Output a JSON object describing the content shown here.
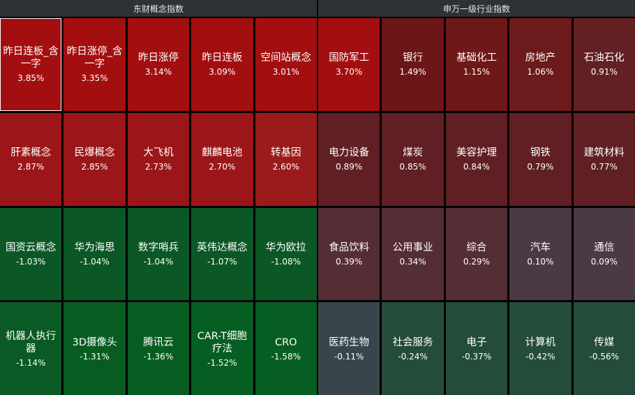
{
  "panels": [
    {
      "title": "东财概念指数",
      "items": [
        {
          "name": "昨日连板_含一字",
          "pct": "3.85%",
          "color": "#a30f10"
        },
        {
          "name": "昨日涨停_含一字",
          "pct": "3.35%",
          "color": "#a30f10"
        },
        {
          "name": "昨日涨停",
          "pct": "3.14%",
          "color": "#a30f10"
        },
        {
          "name": "昨日连板",
          "pct": "3.09%",
          "color": "#a30f10"
        },
        {
          "name": "空间站概念",
          "pct": "3.01%",
          "color": "#a30f10"
        },
        {
          "name": "肝素概念",
          "pct": "2.87%",
          "color": "#9b1618"
        },
        {
          "name": "民爆概念",
          "pct": "2.85%",
          "color": "#9b1618"
        },
        {
          "name": "大飞机",
          "pct": "2.73%",
          "color": "#9b1618"
        },
        {
          "name": "麒麟电池",
          "pct": "2.70%",
          "color": "#9b1618"
        },
        {
          "name": "转基因",
          "pct": "2.60%",
          "color": "#9b1a1a"
        },
        {
          "name": "国资云概念",
          "pct": "-1.03%",
          "color": "#0b5826"
        },
        {
          "name": "华为海思",
          "pct": "-1.04%",
          "color": "#0b5826"
        },
        {
          "name": "数字哨兵",
          "pct": "-1.04%",
          "color": "#0b5826"
        },
        {
          "name": "英伟达概念",
          "pct": "-1.07%",
          "color": "#0b5826"
        },
        {
          "name": "华为欧拉",
          "pct": "-1.08%",
          "color": "#0b5826"
        },
        {
          "name": "机器人执行器",
          "pct": "-1.14%",
          "color": "#095a24"
        },
        {
          "name": "3D摄像头",
          "pct": "-1.31%",
          "color": "#085c22"
        },
        {
          "name": "腾讯云",
          "pct": "-1.36%",
          "color": "#085c22"
        },
        {
          "name": "CAR-T细胞疗法",
          "pct": "-1.52%",
          "color": "#065e22"
        },
        {
          "name": "CRO",
          "pct": "-1.58%",
          "color": "#065e22"
        }
      ]
    },
    {
      "title": "申万一级行业指数",
      "items": [
        {
          "name": "国防军工",
          "pct": "3.70%",
          "color": "#a30f10"
        },
        {
          "name": "银行",
          "pct": "1.49%",
          "color": "#6c1617"
        },
        {
          "name": "基础化工",
          "pct": "1.15%",
          "color": "#6e1818"
        },
        {
          "name": "房地产",
          "pct": "1.06%",
          "color": "#6c1a1b"
        },
        {
          "name": "石油石化",
          "pct": "0.91%",
          "color": "#631f21"
        },
        {
          "name": "电力设备",
          "pct": "0.89%",
          "color": "#601f22"
        },
        {
          "name": "煤炭",
          "pct": "0.85%",
          "color": "#601f22"
        },
        {
          "name": "美容护理",
          "pct": "0.84%",
          "color": "#601f22"
        },
        {
          "name": "钢铁",
          "pct": "0.79%",
          "color": "#601f22"
        },
        {
          "name": "建筑材料",
          "pct": "0.77%",
          "color": "#601f22"
        },
        {
          "name": "食品饮料",
          "pct": "0.39%",
          "color": "#552d34"
        },
        {
          "name": "公用事业",
          "pct": "0.34%",
          "color": "#552d34"
        },
        {
          "name": "综合",
          "pct": "0.29%",
          "color": "#552d34"
        },
        {
          "name": "汽车",
          "pct": "0.10%",
          "color": "#4b3a46"
        },
        {
          "name": "通信",
          "pct": "0.09%",
          "color": "#4b3a46"
        },
        {
          "name": "医药生物",
          "pct": "-0.11%",
          "color": "#38464c"
        },
        {
          "name": "社会服务",
          "pct": "-0.24%",
          "color": "#254b3b"
        },
        {
          "name": "电子",
          "pct": "-0.37%",
          "color": "#254b3b"
        },
        {
          "name": "计算机",
          "pct": "-0.42%",
          "color": "#254b3b"
        },
        {
          "name": "传媒",
          "pct": "-0.56%",
          "color": "#254b3b"
        }
      ]
    }
  ]
}
